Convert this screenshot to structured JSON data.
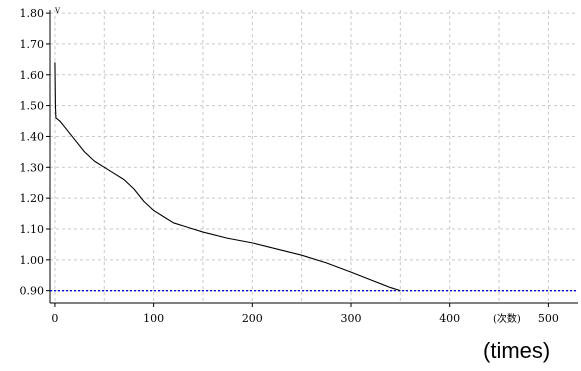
{
  "chart_data": {
    "type": "line",
    "title": "",
    "xlabel": "(times)",
    "ylabel": "V",
    "x_axis_inline_label": "(次数)",
    "xlim": [
      -5,
      530
    ],
    "ylim": [
      0.86,
      1.81
    ],
    "x_ticks": [
      0,
      100,
      200,
      300,
      400,
      500
    ],
    "x_tick_labels": [
      "0",
      "100",
      "200",
      "300",
      "400",
      "500"
    ],
    "y_ticks": [
      0.9,
      1.0,
      1.1,
      1.2,
      1.3,
      1.4,
      1.5,
      1.6,
      1.7,
      1.8
    ],
    "y_tick_labels": [
      "0.90",
      "1.00",
      "1.10",
      "1.20",
      "1.30",
      "1.40",
      "1.50",
      "1.60",
      "1.70",
      "1.80"
    ],
    "grid": true,
    "series": [
      {
        "color": "#000000",
        "x": [
          0,
          0.5,
          1,
          5,
          10,
          20,
          30,
          40,
          50,
          60,
          70,
          75,
          80,
          90,
          100,
          110,
          120,
          130,
          140,
          150,
          175,
          200,
          225,
          250,
          275,
          300,
          320,
          340,
          350
        ],
        "y": [
          1.64,
          1.5,
          1.46,
          1.45,
          1.43,
          1.39,
          1.35,
          1.32,
          1.3,
          1.28,
          1.26,
          1.245,
          1.23,
          1.19,
          1.16,
          1.14,
          1.12,
          1.11,
          1.1,
          1.09,
          1.07,
          1.055,
          1.035,
          1.015,
          0.99,
          0.96,
          0.935,
          0.91,
          0.9
        ]
      }
    ],
    "reference_lines": [
      {
        "axis": "y",
        "value": 0.9,
        "color": "#0000cc",
        "style": "dotted"
      }
    ]
  }
}
